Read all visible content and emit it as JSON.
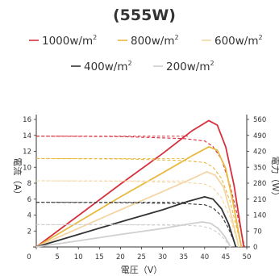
{
  "chart_data": {
    "type": "line",
    "title": "(555W)",
    "xlabel": "電圧（V）",
    "ylabel_left": "電流（A）",
    "ylabel_right": "電力（W）",
    "xlim": [
      0,
      50
    ],
    "ylim_left": [
      0,
      16
    ],
    "ylim_right": [
      0,
      560
    ],
    "x_ticks": [
      0,
      5,
      10,
      15,
      20,
      25,
      30,
      35,
      40,
      45,
      50
    ],
    "y_left_ticks": [
      2,
      4,
      6,
      8,
      10,
      12,
      14,
      16
    ],
    "y_right_ticks": [
      0,
      70,
      140,
      210,
      280,
      350,
      420,
      490,
      560
    ],
    "legend_position": "top",
    "series": [
      {
        "name": "1000w/m",
        "name_sup": "2",
        "color": "#d6303d",
        "isc": 13.9,
        "voc": 49.5,
        "vmp": 41.0,
        "pmax": 555,
        "iv": [
          [
            0,
            13.9
          ],
          [
            20,
            13.85
          ],
          [
            35,
            13.6
          ],
          [
            40,
            13.3
          ],
          [
            42,
            12.6
          ],
          [
            44,
            11.0
          ],
          [
            46,
            7.8
          ],
          [
            48,
            3.5
          ],
          [
            49.5,
            0
          ]
        ],
        "pv": [
          [
            0,
            0
          ],
          [
            10,
            138
          ],
          [
            20,
            276
          ],
          [
            30,
            410
          ],
          [
            37,
            510
          ],
          [
            41,
            555
          ],
          [
            43,
            535
          ],
          [
            45,
            440
          ],
          [
            47,
            270
          ],
          [
            48.5,
            90
          ],
          [
            49.3,
            0
          ]
        ]
      },
      {
        "name": "800w/m",
        "name_sup": "2",
        "color": "#e8b940",
        "isc": 11.1,
        "voc": 48.8,
        "vmp": 41.0,
        "pmax": 440,
        "iv": [
          [
            0,
            11.1
          ],
          [
            20,
            11.05
          ],
          [
            35,
            10.85
          ],
          [
            40,
            10.6
          ],
          [
            42,
            10.0
          ],
          [
            44,
            8.6
          ],
          [
            46,
            5.8
          ],
          [
            47.8,
            2.0
          ],
          [
            48.8,
            0
          ]
        ],
        "pv": [
          [
            0,
            0
          ],
          [
            10,
            110
          ],
          [
            20,
            220
          ],
          [
            30,
            325
          ],
          [
            37,
            400
          ],
          [
            41,
            440
          ],
          [
            43,
            425
          ],
          [
            45,
            345
          ],
          [
            46.8,
            190
          ],
          [
            48.2,
            50
          ],
          [
            48.7,
            0
          ]
        ]
      },
      {
        "name": "600w/m",
        "name_sup": "2",
        "color": "#f3d6a3",
        "isc": 8.3,
        "voc": 48.2,
        "vmp": 40.5,
        "pmax": 330,
        "iv": [
          [
            0,
            8.3
          ],
          [
            20,
            8.25
          ],
          [
            35,
            8.1
          ],
          [
            40,
            7.9
          ],
          [
            42,
            7.4
          ],
          [
            44,
            6.2
          ],
          [
            46,
            3.8
          ],
          [
            47.5,
            1.2
          ],
          [
            48.2,
            0
          ]
        ],
        "pv": [
          [
            0,
            0
          ],
          [
            10,
            82
          ],
          [
            20,
            163
          ],
          [
            30,
            243
          ],
          [
            37,
            300
          ],
          [
            40.5,
            330
          ],
          [
            42.5,
            315
          ],
          [
            44.5,
            262
          ],
          [
            46.3,
            140
          ],
          [
            47.6,
            40
          ],
          [
            48.1,
            0
          ]
        ]
      },
      {
        "name": "400w/m",
        "name_sup": "2",
        "color": "#333333",
        "isc": 5.6,
        "voc": 47.5,
        "vmp": 40.0,
        "pmax": 220,
        "iv": [
          [
            0,
            5.6
          ],
          [
            20,
            5.55
          ],
          [
            35,
            5.45
          ],
          [
            40,
            5.3
          ],
          [
            42,
            4.9
          ],
          [
            44,
            3.9
          ],
          [
            45.5,
            2.5
          ],
          [
            46.8,
            0.9
          ],
          [
            47.5,
            0
          ]
        ],
        "pv": [
          [
            0,
            0
          ],
          [
            10,
            55
          ],
          [
            20,
            110
          ],
          [
            30,
            163
          ],
          [
            36,
            200
          ],
          [
            40,
            220
          ],
          [
            42,
            210
          ],
          [
            44,
            168
          ],
          [
            45.7,
            100
          ],
          [
            46.9,
            30
          ],
          [
            47.4,
            0
          ]
        ]
      },
      {
        "name": "200w/m",
        "name_sup": "2",
        "color": "#cfcfcf",
        "isc": 2.8,
        "voc": 46.2,
        "vmp": 39.5,
        "pmax": 110,
        "iv": [
          [
            0,
            2.8
          ],
          [
            20,
            2.78
          ],
          [
            35,
            2.72
          ],
          [
            39,
            2.62
          ],
          [
            41,
            2.4
          ],
          [
            43,
            1.85
          ],
          [
            44.5,
            1.1
          ],
          [
            45.6,
            0.4
          ],
          [
            46.2,
            0
          ]
        ],
        "pv": [
          [
            0,
            0
          ],
          [
            10,
            27
          ],
          [
            20,
            55
          ],
          [
            30,
            81
          ],
          [
            36,
            100
          ],
          [
            39.5,
            110
          ],
          [
            41.5,
            103
          ],
          [
            43.3,
            80
          ],
          [
            44.8,
            45
          ],
          [
            45.8,
            12
          ],
          [
            46.1,
            0
          ]
        ]
      }
    ]
  }
}
